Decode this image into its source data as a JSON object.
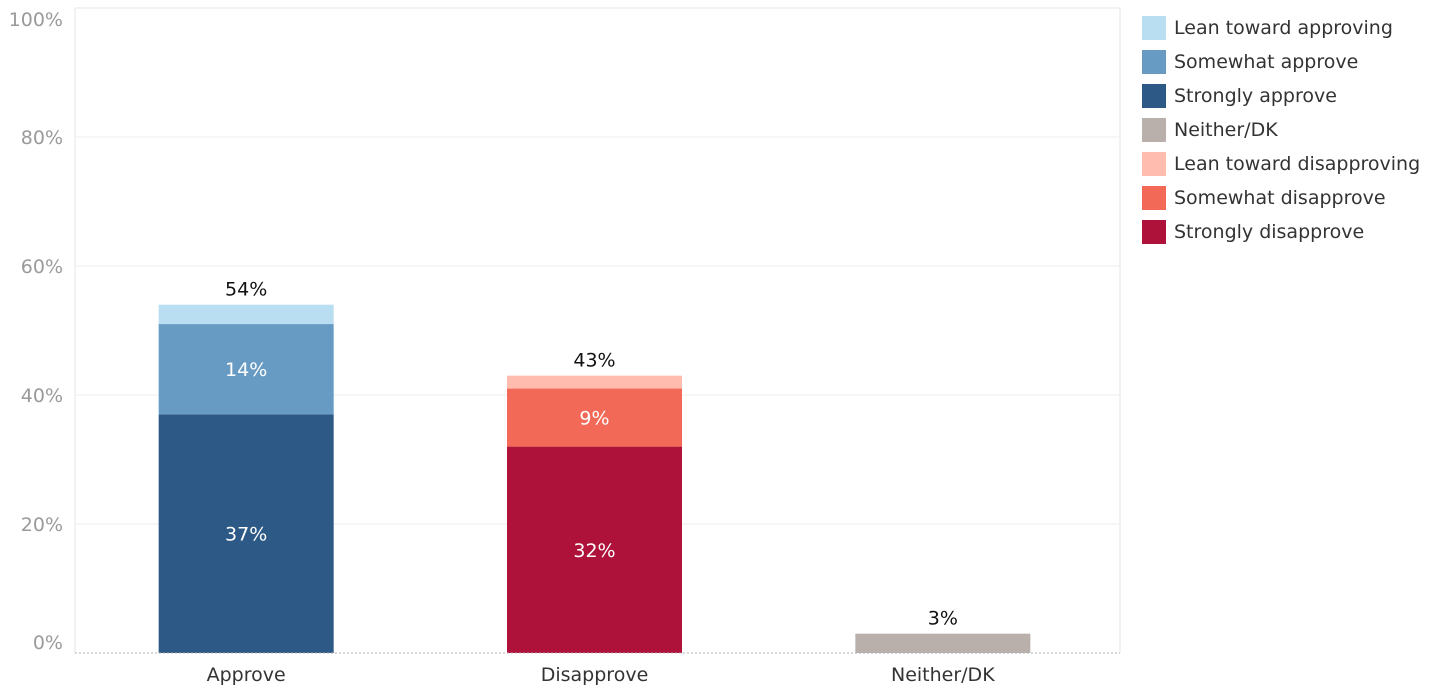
{
  "chart_data": {
    "type": "bar",
    "stacked": true,
    "categories": [
      "Approve",
      "Disapprove",
      "Neither/DK"
    ],
    "ylim": [
      0,
      100
    ],
    "y_ticks": [
      "0%",
      "20%",
      "40%",
      "60%",
      "80%",
      "100%"
    ],
    "y_tick_values": [
      0,
      20,
      40,
      60,
      80,
      100
    ],
    "grid": true,
    "legend_position": "right",
    "series": [
      {
        "name": "Strongly approve",
        "color": "#2c5985",
        "values": [
          37,
          null,
          null
        ],
        "labels": [
          "37%",
          null,
          null
        ]
      },
      {
        "name": "Somewhat approve",
        "color": "#689bc4",
        "values": [
          14,
          null,
          null
        ],
        "labels": [
          "14%",
          null,
          null
        ]
      },
      {
        "name": "Lean toward approving",
        "color": "#b9ddf1",
        "values": [
          3,
          null,
          null
        ],
        "labels": [
          null,
          null,
          null
        ]
      },
      {
        "name": "Strongly disapprove",
        "color": "#ae123a",
        "values": [
          null,
          32,
          null
        ],
        "labels": [
          null,
          "32%",
          null
        ]
      },
      {
        "name": "Somewhat disapprove",
        "color": "#f26957",
        "values": [
          null,
          9,
          null
        ],
        "labels": [
          null,
          "9%",
          null
        ]
      },
      {
        "name": "Lean toward disapproving",
        "color": "#ffbcaf",
        "values": [
          null,
          2,
          null
        ],
        "labels": [
          null,
          null,
          null
        ]
      },
      {
        "name": "Neither/DK",
        "color": "#b9b0ab",
        "values": [
          null,
          null,
          3
        ],
        "labels": [
          null,
          null,
          null
        ]
      }
    ],
    "totals": [
      {
        "value": 54,
        "label": "54%"
      },
      {
        "value": 43,
        "label": "43%"
      },
      {
        "value": 3,
        "label": "3%"
      }
    ],
    "legend": [
      {
        "name": "Lean toward approving",
        "color": "#b9ddf1"
      },
      {
        "name": "Somewhat approve",
        "color": "#689bc4"
      },
      {
        "name": "Strongly approve",
        "color": "#2c5985"
      },
      {
        "name": "Neither/DK",
        "color": "#b9b0ab"
      },
      {
        "name": "Lean toward disapproving",
        "color": "#ffbcaf"
      },
      {
        "name": "Somewhat disapprove",
        "color": "#f26957"
      },
      {
        "name": "Strongly disapprove",
        "color": "#ae123a"
      }
    ]
  }
}
